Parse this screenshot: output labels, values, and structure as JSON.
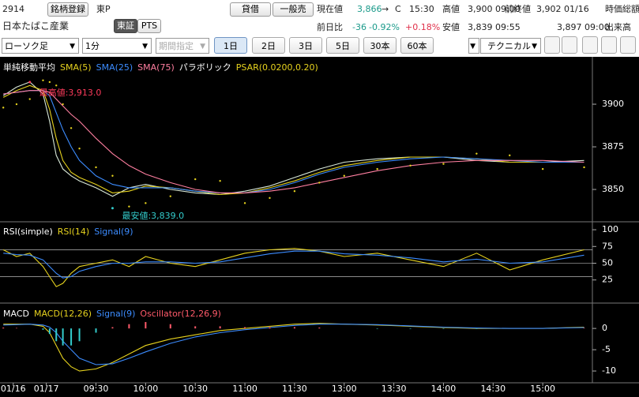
{
  "header": {
    "code": "2914",
    "register_button": "銘柄登録",
    "market": "東P",
    "name": "日本たばこ産業",
    "exchange_tabs": [
      "東証",
      "PTS"
    ],
    "order_buttons": [
      "貸借",
      "一般売"
    ],
    "quote": {
      "current_label": "現在値",
      "current": "3,866",
      "arrow": "→",
      "flag": "C",
      "time": "15:30",
      "high_label": "高値",
      "high": "3,900 09:00",
      "prev_label": "前終値",
      "prev": "3,902 01/16",
      "cap_label": "時価総額",
      "change_label": "前日比",
      "change": "-36",
      "change_pct": "-0.92%",
      "extra_pct": "+0.18%",
      "low_label": "安値",
      "low": "3,839 09:55",
      "open": "3,897 09:00",
      "volume_label": "出来高"
    }
  },
  "toolbar": {
    "chart_type": "ローソク足",
    "interval": "1分",
    "period": "期間指定",
    "ranges": [
      "1日",
      "2日",
      "3日",
      "5日",
      "30本",
      "60本"
    ],
    "technical": "テクニカル"
  },
  "chart_data": [
    {
      "type": "line",
      "legend_title": "単純移動平均",
      "xlim": [
        -28,
        330
      ],
      "ylim": [
        3831.5,
        3926.4
      ],
      "yticks": [
        3850,
        3875,
        3900
      ],
      "x": [
        -26,
        -18,
        -10,
        -2,
        2,
        6,
        10,
        15,
        20,
        30,
        40,
        50,
        60,
        75,
        90,
        105,
        120,
        135,
        150,
        165,
        180,
        200,
        220,
        240,
        260,
        280,
        300,
        325
      ],
      "series": [
        {
          "color": "#d8e8d8",
          "values": [
            3905,
            3910,
            3913,
            3906,
            3890,
            3870,
            3862,
            3858,
            3855,
            3851,
            3846,
            3851,
            3853,
            3850,
            3848,
            3847,
            3849,
            3852,
            3857,
            3862,
            3866,
            3868,
            3869,
            3869,
            3867,
            3866,
            3866,
            3867
          ]
        },
        {
          "name": "SMA(5)",
          "color": "#e6d21e",
          "values": [
            3904,
            3908,
            3911,
            3908,
            3897,
            3880,
            3867,
            3860,
            3857,
            3853,
            3848,
            3849,
            3852,
            3851,
            3849,
            3847,
            3848,
            3851,
            3855,
            3860,
            3864,
            3867,
            3869,
            3869,
            3868,
            3866,
            3866,
            3866
          ]
        },
        {
          "name": "SMA(25)",
          "color": "#3c8cff",
          "values": [
            3906,
            3907,
            3908,
            3908,
            3905,
            3895,
            3885,
            3875,
            3867,
            3858,
            3853,
            3851,
            3851,
            3851,
            3849,
            3848,
            3848,
            3850,
            3854,
            3859,
            3863,
            3866,
            3868,
            3869,
            3868,
            3867,
            3866,
            3866
          ]
        },
        {
          "name": "SMA(75)",
          "color": "#ff7fa0",
          "values": [
            3906,
            3907,
            3908,
            3908,
            3907,
            3903,
            3899,
            3894,
            3890,
            3880,
            3871,
            3864,
            3859,
            3854,
            3850,
            3848,
            3848,
            3849,
            3851,
            3854,
            3857,
            3861,
            3864,
            3866,
            3867,
            3867,
            3867,
            3866
          ]
        }
      ],
      "overlay": {
        "title": "パラボリック",
        "name": "PSAR(0.0200,0.20)",
        "color": "#e6d21e",
        "values": [
          3898,
          3900,
          3903,
          3914,
          3913,
          3911,
          3900,
          3886,
          3874,
          3863,
          3858,
          3840,
          3842,
          3846,
          3856,
          3855,
          3842,
          3845,
          3849,
          3854,
          3858,
          3862,
          3864,
          3865,
          3871,
          3870,
          3862,
          3863
        ]
      },
      "annotations": [
        {
          "text": "最高値:3,913.0",
          "x": -10,
          "y": 3913,
          "color": "#ff3b5c"
        },
        {
          "text": "最安値:3,839.0",
          "x": 40,
          "y": 3839,
          "color": "#33cccc"
        }
      ]
    },
    {
      "type": "line",
      "title": "RSI(simple)",
      "xlim": [
        -28,
        330
      ],
      "ylim": [
        -4.8,
        109.5
      ],
      "yticks": [
        25,
        50,
        75,
        100
      ],
      "reference_lines": [
        30,
        50,
        70
      ],
      "x": [
        -26,
        -18,
        -10,
        -2,
        2,
        6,
        10,
        15,
        20,
        30,
        40,
        50,
        60,
        75,
        90,
        105,
        120,
        135,
        150,
        165,
        180,
        200,
        220,
        240,
        260,
        280,
        300,
        325
      ],
      "series": [
        {
          "name": "RSI(14)",
          "color": "#e6d21e",
          "values": [
            70,
            60,
            65,
            45,
            30,
            15,
            20,
            35,
            45,
            50,
            55,
            45,
            60,
            50,
            45,
            55,
            65,
            70,
            72,
            68,
            60,
            65,
            55,
            45,
            65,
            40,
            55,
            70
          ]
        },
        {
          "name": "Signal(9)",
          "color": "#3c8cff",
          "values": [
            65,
            63,
            62,
            55,
            45,
            35,
            28,
            30,
            38,
            45,
            50,
            50,
            52,
            52,
            50,
            52,
            58,
            64,
            68,
            68,
            64,
            62,
            58,
            52,
            56,
            50,
            52,
            62
          ]
        }
      ]
    },
    {
      "type": "line",
      "title": "MACD",
      "xlim": [
        -28,
        330
      ],
      "ylim": [
        -12.4,
        5.4
      ],
      "yticks": [
        -10,
        -5,
        0
      ],
      "xticks": [
        {
          "value": -20,
          "label": "01/16"
        },
        {
          "value": 0,
          "label": "01/17"
        },
        {
          "value": 30,
          "label": "09:30"
        },
        {
          "value": 60,
          "label": "10:00"
        },
        {
          "value": 90,
          "label": "10:30"
        },
        {
          "value": 120,
          "label": "11:00"
        },
        {
          "value": 150,
          "label": "11:30"
        },
        {
          "value": 180,
          "label": "13:00"
        },
        {
          "value": 210,
          "label": "13:30"
        },
        {
          "value": 240,
          "label": "14:00"
        },
        {
          "value": 270,
          "label": "14:30"
        },
        {
          "value": 300,
          "label": "15:00"
        }
      ],
      "x": [
        -26,
        -18,
        -10,
        -2,
        2,
        6,
        10,
        15,
        20,
        30,
        40,
        50,
        60,
        75,
        90,
        105,
        120,
        135,
        150,
        165,
        180,
        200,
        220,
        240,
        260,
        280,
        300,
        325
      ],
      "series": [
        {
          "name": "MACD(12,26)",
          "color": "#e6d21e",
          "values": [
            1,
            1,
            1,
            0.5,
            -1,
            -4,
            -7,
            -9,
            -10,
            -9.5,
            -8,
            -6,
            -4,
            -2.5,
            -1.5,
            -0.5,
            0,
            0.5,
            1,
            1.2,
            1,
            0.8,
            0.5,
            0.2,
            0,
            0,
            0,
            0.3
          ]
        },
        {
          "name": "Signal(9)",
          "color": "#3c8cff",
          "values": [
            0.8,
            0.9,
            1,
            0.8,
            0.3,
            -1,
            -3,
            -5,
            -7,
            -8.5,
            -8.3,
            -7,
            -5.5,
            -3.5,
            -2,
            -1,
            -0.3,
            0.2,
            0.7,
            1,
            1,
            0.9,
            0.6,
            0.3,
            0.1,
            0,
            0,
            0.2
          ]
        },
        {
          "name": "Oscillator(12,26,9)",
          "style": "bars",
          "color": "#ff5a6a",
          "negative_color": "#33cccc",
          "values": [
            0.2,
            0.1,
            0,
            -0.3,
            -1.3,
            -3,
            -4,
            -4,
            -3,
            -1,
            0.3,
            1,
            1.5,
            1,
            0.5,
            0.5,
            0.3,
            0.3,
            0.3,
            0.2,
            0,
            -0.1,
            -0.1,
            -0.1,
            -0.1,
            0,
            0,
            0.1
          ]
        }
      ]
    }
  ]
}
